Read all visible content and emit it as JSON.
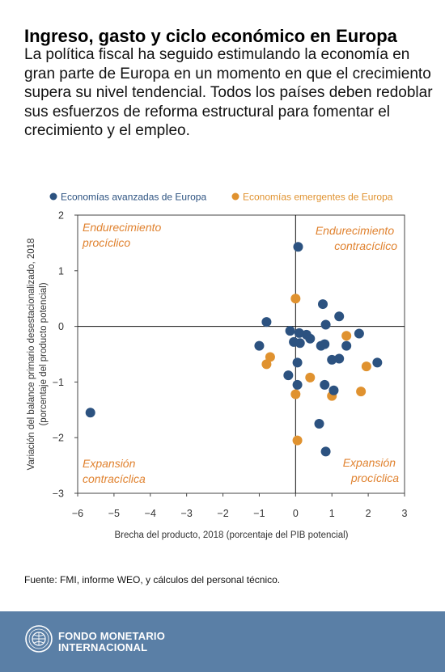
{
  "title": "Ingreso, gasto y ciclo económico en Europa",
  "subtitle": "La política fiscal ha seguido estimulando la economía en gran parte de Europa en un momento en que el crecimiento supera su nivel tendencial. Todos los países deben redoblar sus esfuerzos de reforma estructural para fomentar el crecimiento y el empleo.",
  "source": "Fuente: FMI, informe WEO, y cálculos del personal técnico.",
  "footer": {
    "org_name": "FONDO MONETARIO INTERNACIONAL",
    "org_name_line1": "FONDO MONETARIO",
    "org_name_line2": "INTERNACIONAL"
  },
  "colors": {
    "advanced": "#2c5280",
    "emerging": "#e0922f",
    "quadrant_label": "#e0822f",
    "footer_bg": "#5a7fa6"
  },
  "chart_data": {
    "type": "scatter",
    "xlabel": "Brecha del producto, 2018 (porcentaje del PIB potencial)",
    "ylabel_line1": "Variación del balance primario desestacionalizado, 2018",
    "ylabel_line2": "(porcentaje del producto potencial)",
    "xlim": [
      -6,
      3
    ],
    "ylim": [
      -3,
      2
    ],
    "xticks": [
      -6,
      -5,
      -4,
      -3,
      -2,
      -1,
      0,
      1,
      2,
      3
    ],
    "yticks": [
      -3,
      -2,
      -1,
      0,
      1,
      2
    ],
    "xtick_labels": [
      "−6",
      "−5",
      "−4",
      "−3",
      "−2",
      "−1",
      "0",
      "1",
      "2",
      "3"
    ],
    "ytick_labels": [
      "−3",
      "−2",
      "−1",
      "0",
      "1",
      "2"
    ],
    "legend_position": "top",
    "quadrant_labels": [
      {
        "lines": [
          "Endurecimiento",
          "procíclico"
        ],
        "position": "top-left"
      },
      {
        "lines": [
          "Endurecimiento",
          "contracíclico"
        ],
        "position": "top-right"
      },
      {
        "lines": [
          "Expansión",
          "contracíclica"
        ],
        "position": "bottom-left"
      },
      {
        "lines": [
          "Expansión",
          "procíclica"
        ],
        "position": "bottom-right"
      }
    ],
    "series": [
      {
        "name": "Economías avanzadas de Europa",
        "color": "#2c5280",
        "points": [
          [
            0.07,
            1.43
          ],
          [
            0.75,
            0.4
          ],
          [
            1.2,
            0.18
          ],
          [
            -0.8,
            0.08
          ],
          [
            0.83,
            0.03
          ],
          [
            -0.15,
            -0.08
          ],
          [
            0.1,
            -0.12
          ],
          [
            0.3,
            -0.15
          ],
          [
            0.4,
            -0.22
          ],
          [
            1.75,
            -0.13
          ],
          [
            -0.05,
            -0.28
          ],
          [
            0.12,
            -0.3
          ],
          [
            0.7,
            -0.35
          ],
          [
            0.8,
            -0.32
          ],
          [
            1.4,
            -0.35
          ],
          [
            -1.0,
            -0.35
          ],
          [
            0.05,
            -0.65
          ],
          [
            1.2,
            -0.58
          ],
          [
            1.0,
            -0.6
          ],
          [
            2.25,
            -0.65
          ],
          [
            -0.2,
            -0.88
          ],
          [
            0.05,
            -1.05
          ],
          [
            0.8,
            -1.05
          ],
          [
            1.05,
            -1.15
          ],
          [
            0.65,
            -1.75
          ],
          [
            0.83,
            -2.25
          ],
          [
            -5.65,
            -1.55
          ]
        ]
      },
      {
        "name": "Economías emergentes de Europa",
        "color": "#e0922f",
        "points": [
          [
            0.0,
            0.5
          ],
          [
            1.4,
            -0.17
          ],
          [
            -0.7,
            -0.55
          ],
          [
            -0.8,
            -0.68
          ],
          [
            1.95,
            -0.72
          ],
          [
            0.4,
            -0.92
          ],
          [
            0.0,
            -1.22
          ],
          [
            1.0,
            -1.25
          ],
          [
            1.8,
            -1.17
          ],
          [
            0.05,
            -2.05
          ]
        ]
      }
    ]
  }
}
